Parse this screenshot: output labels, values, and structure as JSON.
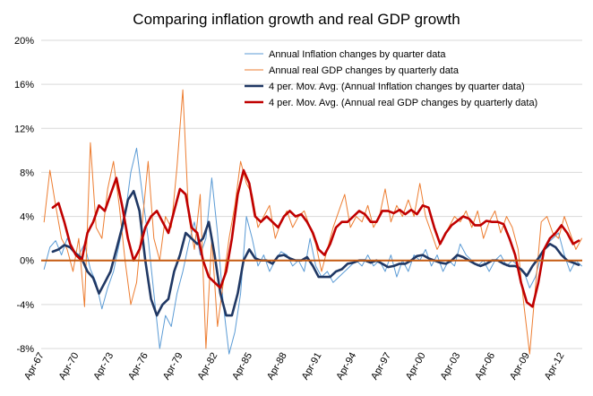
{
  "chart_data": {
    "type": "line",
    "title": "Comparing inflation growth and real GDP growth",
    "xlabel": "",
    "ylabel": "",
    "ylim": [
      -8,
      20
    ],
    "y_ticks": [
      "20%",
      "16%",
      "12%",
      "8%",
      "4%",
      "0%",
      "-4%",
      "-8%"
    ],
    "y_tick_values": [
      20,
      16,
      12,
      8,
      4,
      0,
      -4,
      -8
    ],
    "x_ticks": [
      "Apr-67",
      "Apr-70",
      "Apr-73",
      "Apr-76",
      "Apr-79",
      "Apr-82",
      "Apr-85",
      "Apr-88",
      "Apr-91",
      "Apr-94",
      "Apr-97",
      "Apr-00",
      "Apr-03",
      "Apr-06",
      "Apr-09",
      "Apr-12"
    ],
    "x_tick_years": [
      1967.25,
      1970.25,
      1973.25,
      1976.25,
      1979.25,
      1982.25,
      1985.25,
      1988.25,
      1991.25,
      1994.25,
      1997.25,
      2000.25,
      2003.25,
      2006.25,
      2009.25,
      2012.25
    ],
    "xlim": [
      1967.0,
      2013.8
    ],
    "grid": "horizontal",
    "legend_position": "top-right",
    "zero_line_color": "#c55a11",
    "series": [
      {
        "name": "Annual Inflation changes by quarter data",
        "color": "#5b9bd5",
        "width": 1,
        "x": [
          1967.25,
          1967.75,
          1968.25,
          1968.75,
          1969.25,
          1969.75,
          1970.25,
          1970.75,
          1971.25,
          1971.75,
          1972.25,
          1972.75,
          1973.25,
          1973.75,
          1974.25,
          1974.75,
          1975.25,
          1975.75,
          1976.25,
          1976.75,
          1977.25,
          1977.75,
          1978.25,
          1978.75,
          1979.25,
          1979.75,
          1980.25,
          1980.75,
          1981.25,
          1981.75,
          1982.25,
          1982.75,
          1983.25,
          1983.75,
          1984.25,
          1984.75,
          1985.25,
          1985.75,
          1986.25,
          1986.75,
          1987.25,
          1987.75,
          1988.25,
          1988.75,
          1989.25,
          1989.75,
          1990.25,
          1990.75,
          1991.25,
          1991.75,
          1992.25,
          1992.75,
          1993.25,
          1993.75,
          1994.25,
          1994.75,
          1995.25,
          1995.75,
          1996.25,
          1996.75,
          1997.25,
          1997.75,
          1998.25,
          1998.75,
          1999.25,
          1999.75,
          2000.25,
          2000.75,
          2001.25,
          2001.75,
          2002.25,
          2002.75,
          2003.25,
          2003.75,
          2004.25,
          2004.75,
          2005.25,
          2005.75,
          2006.25,
          2006.75,
          2007.25,
          2007.75,
          2008.25,
          2008.75,
          2009.25,
          2009.75,
          2010.25,
          2010.75,
          2011.25,
          2011.75,
          2012.25,
          2012.75,
          2013.25,
          2013.75
        ],
        "values": [
          -0.8,
          1.2,
          1.8,
          0.5,
          2.0,
          1.0,
          0.5,
          1.5,
          -0.8,
          -2.0,
          -4.4,
          -2.5,
          -1.0,
          1.5,
          4.0,
          8.0,
          10.2,
          6.0,
          2.0,
          -3.0,
          -8.0,
          -5.0,
          -6.0,
          -3.0,
          -1.0,
          1.5,
          3.5,
          0.5,
          2.0,
          7.5,
          2.5,
          -4.0,
          -8.5,
          -6.5,
          -3.0,
          4.0,
          2.0,
          -0.5,
          0.5,
          -1.0,
          0.0,
          0.8,
          0.5,
          -0.5,
          0.0,
          -1.0,
          2.0,
          -0.5,
          -1.5,
          -1.0,
          -2.0,
          -1.5,
          -1.0,
          -0.5,
          0.0,
          -0.5,
          0.5,
          -0.5,
          0.0,
          -1.0,
          0.5,
          -1.5,
          0.0,
          -1.0,
          0.5,
          0.0,
          1.0,
          -0.5,
          0.5,
          -1.0,
          0.0,
          -0.5,
          1.5,
          0.5,
          0.0,
          -0.5,
          0.0,
          -1.0,
          0.0,
          0.5,
          -0.5,
          0.0,
          -0.5,
          -1.0,
          -2.5,
          -1.5,
          0.5,
          1.5,
          2.0,
          2.5,
          0.5,
          -1.0,
          0.0,
          -0.5
        ]
      },
      {
        "name": "Annual real GDP changes by quarterly data",
        "color": "#ed7d31",
        "width": 1,
        "x": [
          1967.25,
          1967.75,
          1968.25,
          1968.75,
          1969.25,
          1969.75,
          1970.25,
          1970.75,
          1971.25,
          1971.75,
          1972.25,
          1972.75,
          1973.25,
          1973.75,
          1974.25,
          1974.75,
          1975.25,
          1975.75,
          1976.25,
          1976.75,
          1977.25,
          1977.75,
          1978.25,
          1978.75,
          1979.25,
          1979.75,
          1980.25,
          1980.75,
          1981.25,
          1981.75,
          1982.25,
          1982.75,
          1983.25,
          1983.75,
          1984.25,
          1984.75,
          1985.25,
          1985.75,
          1986.25,
          1986.75,
          1987.25,
          1987.75,
          1988.25,
          1988.75,
          1989.25,
          1989.75,
          1990.25,
          1990.75,
          1991.25,
          1991.75,
          1992.25,
          1992.75,
          1993.25,
          1993.75,
          1994.25,
          1994.75,
          1995.25,
          1995.75,
          1996.25,
          1996.75,
          1997.25,
          1997.75,
          1998.25,
          1998.75,
          1999.25,
          1999.75,
          2000.25,
          2000.75,
          2001.25,
          2001.75,
          2002.25,
          2002.75,
          2003.25,
          2003.75,
          2004.25,
          2004.75,
          2005.25,
          2005.75,
          2006.25,
          2006.75,
          2007.25,
          2007.75,
          2008.25,
          2008.75,
          2009.25,
          2009.75,
          2010.25,
          2010.75,
          2011.25,
          2011.75,
          2012.25,
          2012.75,
          2013.25,
          2013.75
        ],
        "values": [
          3.5,
          8.2,
          5.0,
          2.0,
          1.0,
          -1.0,
          2.0,
          -4.2,
          10.7,
          3.0,
          2.0,
          6.5,
          9.0,
          5.0,
          0.0,
          -4.0,
          -2.0,
          3.5,
          9.0,
          2.0,
          0.0,
          4.0,
          3.0,
          8.5,
          15.5,
          4.0,
          1.0,
          6.0,
          -8.0,
          2.0,
          -6.0,
          -2.0,
          2.0,
          5.0,
          9.0,
          7.0,
          6.0,
          3.0,
          4.0,
          5.0,
          2.0,
          3.5,
          4.5,
          3.0,
          4.0,
          4.5,
          3.0,
          1.5,
          -1.0,
          1.0,
          3.0,
          4.5,
          6.0,
          3.0,
          4.0,
          3.5,
          5.0,
          3.0,
          4.0,
          6.5,
          3.5,
          5.0,
          4.0,
          5.5,
          4.0,
          7.0,
          4.0,
          2.5,
          1.0,
          2.0,
          3.0,
          4.0,
          3.5,
          4.5,
          3.0,
          4.5,
          2.0,
          3.5,
          4.5,
          2.5,
          4.0,
          3.0,
          1.0,
          -4.0,
          -8.5,
          -2.5,
          3.5,
          4.0,
          2.5,
          2.0,
          4.0,
          2.5,
          1.0,
          2.0
        ]
      },
      {
        "name": "4 per. Mov. Avg. (Annual Inflation changes by quarter data)",
        "color": "#203864",
        "width": 2.6,
        "x": [
          1968.0,
          1968.5,
          1969.0,
          1969.5,
          1970.0,
          1970.5,
          1971.0,
          1971.5,
          1972.0,
          1972.5,
          1973.0,
          1973.5,
          1974.0,
          1974.5,
          1975.0,
          1975.5,
          1976.0,
          1976.5,
          1977.0,
          1977.5,
          1978.0,
          1978.5,
          1979.0,
          1979.5,
          1980.0,
          1980.5,
          1981.0,
          1981.5,
          1982.0,
          1982.5,
          1983.0,
          1983.5,
          1984.0,
          1984.5,
          1985.0,
          1985.5,
          1986.0,
          1986.5,
          1987.0,
          1987.5,
          1988.0,
          1988.5,
          1989.0,
          1989.5,
          1990.0,
          1990.5,
          1991.0,
          1991.5,
          1992.0,
          1992.5,
          1993.0,
          1993.5,
          1994.0,
          1994.5,
          1995.0,
          1995.5,
          1996.0,
          1996.5,
          1997.0,
          1997.5,
          1998.0,
          1998.5,
          1999.0,
          1999.5,
          2000.0,
          2000.5,
          2001.0,
          2001.5,
          2002.0,
          2002.5,
          2003.0,
          2003.5,
          2004.0,
          2004.5,
          2005.0,
          2005.5,
          2006.0,
          2006.5,
          2007.0,
          2007.5,
          2008.0,
          2008.5,
          2009.0,
          2009.5,
          2010.0,
          2010.5,
          2011.0,
          2011.5,
          2012.0,
          2012.5,
          2013.0,
          2013.5
        ],
        "values": [
          0.8,
          1.0,
          1.4,
          1.2,
          0.6,
          0.2,
          -1.0,
          -1.6,
          -3.0,
          -2.0,
          -1.0,
          1.0,
          3.0,
          5.5,
          6.3,
          4.5,
          0.0,
          -3.5,
          -5.0,
          -4.0,
          -3.5,
          -1.0,
          0.5,
          2.5,
          2.0,
          1.5,
          2.0,
          3.5,
          0.5,
          -3.0,
          -5.0,
          -5.0,
          -3.0,
          0.0,
          1.0,
          0.2,
          0.0,
          0.0,
          -0.3,
          0.4,
          0.5,
          0.2,
          0.0,
          0.0,
          0.3,
          -0.5,
          -1.5,
          -1.5,
          -1.5,
          -1.0,
          -0.8,
          -0.3,
          -0.2,
          0.0,
          0.0,
          -0.2,
          0.0,
          -0.3,
          -0.6,
          -0.5,
          -0.3,
          -0.3,
          0.0,
          0.4,
          0.5,
          0.2,
          0.0,
          -0.2,
          -0.3,
          0.0,
          0.5,
          0.3,
          0.0,
          -0.3,
          -0.5,
          -0.3,
          0.0,
          0.0,
          -0.3,
          -0.5,
          -0.5,
          -0.8,
          -1.4,
          -0.5,
          0.2,
          1.0,
          1.5,
          1.2,
          0.5,
          0.0,
          -0.2,
          -0.4
        ]
      },
      {
        "name": "4 per. Mov. Avg. (Annual real GDP changes by quarterly data)",
        "color": "#c00000",
        "width": 2.6,
        "x": [
          1968.0,
          1968.5,
          1969.0,
          1969.5,
          1970.0,
          1970.5,
          1971.0,
          1971.5,
          1972.0,
          1972.5,
          1973.0,
          1973.5,
          1974.0,
          1974.5,
          1975.0,
          1975.5,
          1976.0,
          1976.5,
          1977.0,
          1977.5,
          1978.0,
          1978.5,
          1979.0,
          1979.5,
          1980.0,
          1980.5,
          1981.0,
          1981.5,
          1982.0,
          1982.5,
          1983.0,
          1983.5,
          1984.0,
          1984.5,
          1985.0,
          1985.5,
          1986.0,
          1986.5,
          1987.0,
          1987.5,
          1988.0,
          1988.5,
          1989.0,
          1989.5,
          1990.0,
          1990.5,
          1991.0,
          1991.5,
          1992.0,
          1992.5,
          1993.0,
          1993.5,
          1994.0,
          1994.5,
          1995.0,
          1995.5,
          1996.0,
          1996.5,
          1997.0,
          1997.5,
          1998.0,
          1998.5,
          1999.0,
          1999.5,
          2000.0,
          2000.5,
          2001.0,
          2001.5,
          2002.0,
          2002.5,
          2003.0,
          2003.5,
          2004.0,
          2004.5,
          2005.0,
          2005.5,
          2006.0,
          2006.5,
          2007.0,
          2007.5,
          2008.0,
          2008.5,
          2009.0,
          2009.5,
          2010.0,
          2010.5,
          2011.0,
          2011.5,
          2012.0,
          2012.5,
          2013.0,
          2013.5
        ],
        "values": [
          4.8,
          5.2,
          3.5,
          1.5,
          0.5,
          0.0,
          2.5,
          3.5,
          5.0,
          4.5,
          6.0,
          7.5,
          5.0,
          2.0,
          0.0,
          1.0,
          3.0,
          4.0,
          4.5,
          3.5,
          2.5,
          4.5,
          6.5,
          6.0,
          3.0,
          2.5,
          0.0,
          -1.5,
          -2.0,
          -2.5,
          -1.0,
          2.0,
          6.0,
          8.2,
          7.0,
          4.0,
          3.5,
          4.0,
          3.5,
          3.0,
          4.0,
          4.5,
          4.0,
          4.2,
          3.5,
          2.5,
          1.0,
          0.5,
          1.5,
          3.0,
          3.5,
          3.5,
          4.0,
          4.5,
          4.2,
          3.5,
          3.5,
          4.5,
          4.5,
          4.3,
          4.6,
          4.2,
          4.6,
          4.2,
          5.0,
          4.8,
          3.0,
          1.5,
          2.5,
          3.2,
          3.6,
          4.0,
          3.8,
          3.2,
          3.2,
          3.6,
          3.5,
          3.5,
          3.3,
          2.0,
          0.5,
          -2.0,
          -3.8,
          -4.2,
          -2.0,
          1.0,
          2.0,
          2.5,
          3.2,
          2.5,
          1.5,
          1.8
        ]
      }
    ]
  }
}
